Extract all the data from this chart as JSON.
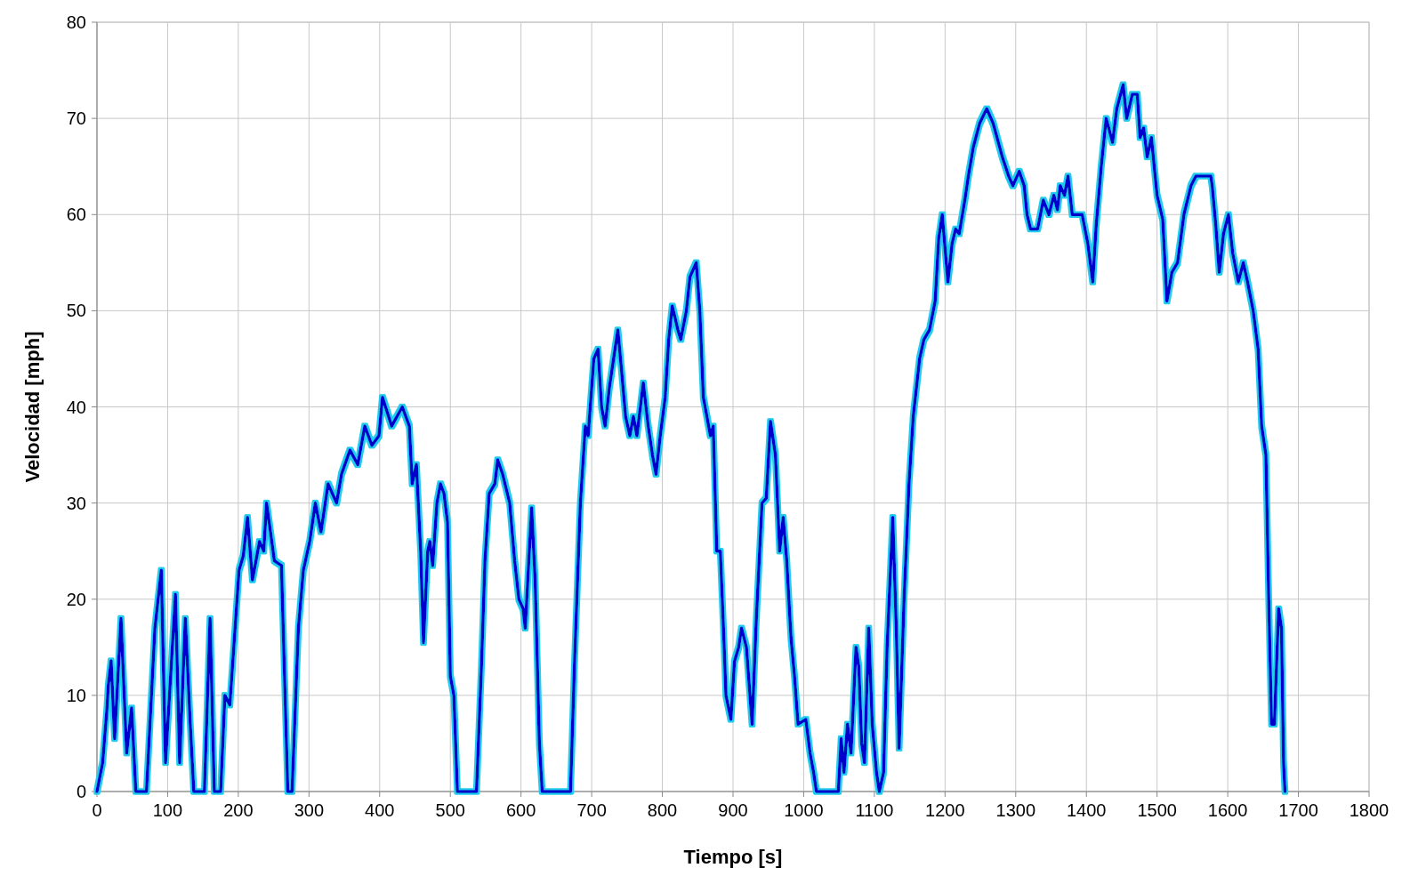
{
  "chart_data": {
    "type": "line",
    "xlabel": "Tiempo [s]",
    "ylabel": "Velocidad [mph]",
    "xlim": [
      0,
      1800
    ],
    "xticks": [
      0,
      100,
      200,
      300,
      400,
      500,
      600,
      700,
      800,
      900,
      1000,
      1100,
      1200,
      1300,
      1400,
      1500,
      1600,
      1700,
      1800
    ],
    "ylim": [
      0,
      80
    ],
    "yticks": [
      0,
      10,
      20,
      30,
      40,
      50,
      60,
      70,
      80
    ],
    "grid": true,
    "series": [
      {
        "color": "#0000cc",
        "x": [
          0,
          8,
          14,
          16,
          20,
          25,
          34,
          42,
          49,
          55,
          70,
          82,
          91,
          97,
          111,
          117,
          125,
          132,
          137,
          152,
          160,
          166,
          175,
          181,
          188,
          201,
          207,
          213,
          220,
          230,
          236,
          240,
          251,
          261,
          270,
          276,
          285,
          292,
          301,
          309,
          317,
          327,
          339,
          346,
          358,
          369,
          379,
          389,
          399,
          404,
          417,
          432,
          442,
          446,
          452,
          458,
          462,
          468,
          471,
          475,
          481,
          486,
          491,
          496,
          500,
          505,
          510,
          537,
          544,
          549,
          555,
          563,
          567,
          574,
          584,
          591,
          597,
          603,
          606,
          615,
          620,
          626,
          630,
          670,
          676,
          684,
          691,
          695,
          703,
          709,
          714,
          719,
          725,
          733,
          737,
          742,
          748,
          754,
          759,
          764,
          773,
          780,
          786,
          791,
          797,
          804,
          809,
          814,
          822,
          826,
          834,
          839,
          848,
          853,
          858,
          868,
          872,
          877,
          882,
          887,
          890,
          897,
          902,
          908,
          912,
          919,
          927,
          933,
          941,
          947,
          953,
          960,
          966,
          971,
          976,
          982,
          987,
          992,
          1003,
          1009,
          1014,
          1018,
          1049,
          1053,
          1057,
          1062,
          1067,
          1074,
          1078,
          1082,
          1086,
          1092,
          1097,
          1103,
          1107,
          1113,
          1118,
          1126,
          1131,
          1135,
          1142,
          1149,
          1155,
          1164,
          1170,
          1178,
          1186,
          1191,
          1196,
          1204,
          1210,
          1215,
          1220,
          1228,
          1233,
          1240,
          1249,
          1259,
          1268,
          1281,
          1290,
          1296,
          1305,
          1312,
          1316,
          1321,
          1331,
          1339,
          1347,
          1354,
          1359,
          1363,
          1369,
          1374,
          1380,
          1394,
          1402,
          1409,
          1414,
          1421,
          1428,
          1437,
          1443,
          1452,
          1457,
          1465,
          1472,
          1476,
          1481,
          1486,
          1492,
          1500,
          1508,
          1514,
          1521,
          1529,
          1538,
          1548,
          1555,
          1576,
          1578,
          1583,
          1588,
          1594,
          1601,
          1607,
          1615,
          1622,
          1628,
          1636,
          1643,
          1648,
          1654,
          1658,
          1662,
          1666,
          1672,
          1676,
          1679,
          1681
        ],
        "values": [
          0,
          3,
          8.5,
          11,
          13.6,
          5.5,
          18,
          4,
          8.7,
          0,
          0,
          17,
          23,
          3,
          20.5,
          3,
          18,
          7,
          0,
          0,
          18,
          0,
          0,
          10,
          9,
          23,
          24.5,
          28.5,
          22,
          26,
          25,
          30,
          24,
          23.5,
          0,
          0,
          17,
          23,
          26,
          30,
          27,
          32,
          30,
          33,
          35.5,
          34,
          38,
          36,
          37,
          41,
          38,
          40,
          38,
          32,
          34,
          25,
          15.5,
          25,
          26,
          23.5,
          30,
          32,
          31,
          28,
          12,
          10,
          0,
          0,
          13,
          24,
          31,
          32,
          34.5,
          33,
          30,
          24,
          20,
          19,
          17,
          29.5,
          22,
          5,
          0,
          0,
          14,
          30,
          38,
          37,
          45,
          46,
          40,
          38,
          42,
          46,
          48,
          44,
          39,
          37,
          39,
          37,
          42.5,
          38,
          35,
          33,
          37,
          41,
          47,
          50.5,
          48,
          47,
          50,
          53.5,
          55,
          50,
          41,
          37,
          38,
          25,
          25,
          16,
          10,
          7.5,
          13.5,
          15,
          17,
          15,
          7,
          18,
          30,
          30.5,
          38.5,
          35,
          25,
          28.5,
          24,
          16,
          12,
          7,
          7.5,
          4,
          2,
          0,
          0,
          5.5,
          2,
          7,
          4,
          15,
          13,
          5,
          3,
          17,
          7,
          2,
          0,
          2,
          15,
          28.5,
          17,
          4.5,
          20,
          32,
          39,
          45,
          47,
          48,
          51,
          57.5,
          60,
          53,
          57,
          58.5,
          58,
          61.5,
          64,
          67,
          69.5,
          71,
          69.5,
          66,
          64,
          63,
          64.5,
          63,
          60,
          58.5,
          58.5,
          61.5,
          60,
          62,
          60.5,
          63,
          62,
          64,
          60,
          60,
          57,
          53,
          59,
          65,
          70,
          67.5,
          71,
          73.5,
          70,
          72.5,
          72.5,
          68,
          69,
          66,
          68,
          62,
          59.5,
          51,
          54,
          55,
          60,
          63,
          64,
          64,
          63,
          59,
          54,
          58,
          60,
          56,
          53,
          55,
          53,
          50,
          46,
          38,
          35,
          20,
          7,
          7,
          19,
          17,
          3,
          0
        ]
      }
    ]
  }
}
